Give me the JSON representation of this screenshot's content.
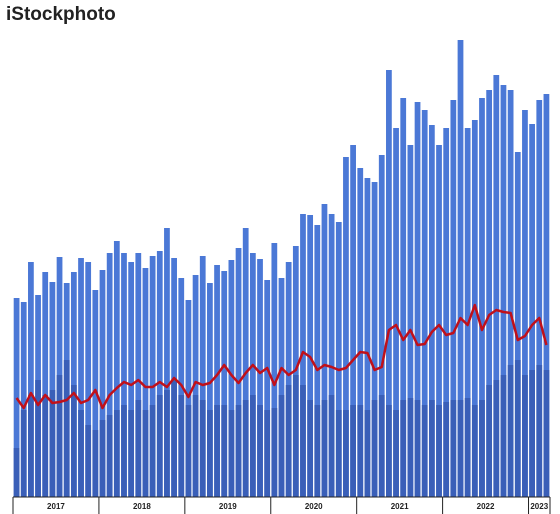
{
  "chart_data": {
    "type": "bar",
    "title": "iStockphoto",
    "years": [
      "2017",
      "2018",
      "2019",
      "2020",
      "2021",
      "2022",
      "2023"
    ],
    "ylim": [
      0,
      470
    ],
    "series": [
      {
        "type": "bar",
        "color": "#4b78d6",
        "values": [
          199,
          195,
          235,
          202,
          225,
          215,
          240,
          214,
          225,
          239,
          235,
          207,
          227,
          244,
          256,
          244,
          235,
          244,
          229,
          241,
          246,
          269,
          239,
          219,
          197,
          222,
          241,
          214,
          232,
          226,
          237,
          249,
          269,
          244,
          238,
          217,
          254,
          219,
          235,
          251,
          283,
          282,
          272,
          293,
          283,
          275,
          340,
          352,
          329,
          319,
          315,
          342,
          427,
          369,
          399,
          352,
          395,
          387,
          372,
          352,
          369,
          397,
          457,
          369,
          377,
          399,
          407,
          422,
          412,
          407,
          345,
          387,
          373,
          397,
          403
        ]
      },
      {
        "type": "bar",
        "color": "#3a5fb8",
        "values": [
          49,
          87,
          102,
          117,
          102,
          107,
          122,
          137,
          112,
          87,
          72,
          67,
          77,
          82,
          87,
          92,
          87,
          97,
          87,
          92,
          102,
          107,
          117,
          102,
          92,
          102,
          97,
          87,
          92,
          92,
          87,
          92,
          97,
          102,
          92,
          87,
          89,
          102,
          112,
          122,
          112,
          97,
          92,
          97,
          102,
          87,
          87,
          92,
          92,
          87,
          97,
          102,
          92,
          87,
          97,
          99,
          97,
          92,
          97,
          92,
          95,
          97,
          97,
          99,
          92,
          97,
          112,
          117,
          122,
          132,
          137,
          122,
          127,
          132,
          127
        ]
      },
      {
        "type": "line",
        "color": "#c0101a",
        "values": [
          99,
          89,
          104,
          92,
          102,
          94,
          95,
          97,
          104,
          94,
          97,
          107,
          89,
          102,
          109,
          115,
          112,
          117,
          110,
          110,
          115,
          110,
          119,
          112,
          100,
          115,
          112,
          114,
          122,
          132,
          122,
          114,
          124,
          132,
          124,
          129,
          112,
          129,
          122,
          127,
          145,
          140,
          127,
          132,
          130,
          127,
          129,
          137,
          145,
          144,
          127,
          130,
          167,
          172,
          157,
          167,
          152,
          153,
          165,
          172,
          162,
          164,
          179,
          172,
          192,
          167,
          182,
          187,
          185,
          184,
          157,
          161,
          172,
          179,
          152
        ]
      }
    ]
  }
}
